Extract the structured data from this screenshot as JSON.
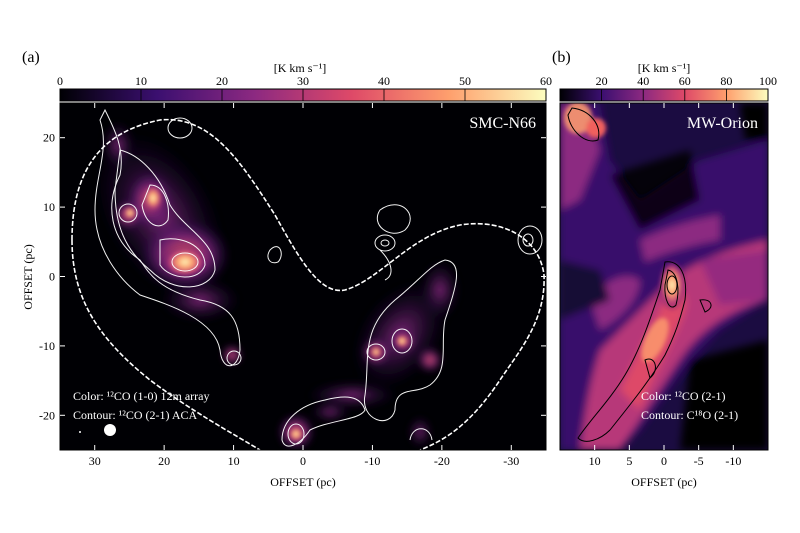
{
  "panel_a": {
    "label": "(a)",
    "title": "SMC-N66",
    "colorbar": {
      "unit": "[K km s⁻¹]",
      "ticks": [
        0,
        10,
        20,
        30,
        40,
        50,
        60
      ],
      "range": [
        0,
        60
      ]
    },
    "xlabel": "OFFSET (pc)",
    "ylabel": "OFFSET (pc)",
    "xticks": [
      30,
      20,
      10,
      0,
      -10,
      -20,
      -30
    ],
    "yticks": [
      20,
      10,
      0,
      -10,
      -20
    ],
    "xlim": [
      35,
      -35
    ],
    "ylim": [
      -25,
      25
    ],
    "legend_color": "Color: ¹²CO (1-0) 12m array",
    "legend_contour": "Contour: ¹²CO (2-1)  ACA"
  },
  "panel_b": {
    "label": "(b)",
    "title": "MW-Orion",
    "colorbar": {
      "unit": "[K km s⁻¹]",
      "ticks": [
        20,
        40,
        60,
        80,
        100
      ],
      "range": [
        0,
        100
      ]
    },
    "xlabel": "OFFSET (pc)",
    "xticks": [
      10,
      5,
      0,
      -5,
      -10
    ],
    "xlim": [
      15,
      -15
    ],
    "legend_color": "Color: ¹²CO (2-1)",
    "legend_contour": "Contour: C¹⁸O (2-1)"
  },
  "colormap": [
    "#000004",
    "#3b0f70",
    "#8c2981",
    "#de4968",
    "#fe9f6d",
    "#fcfdbf"
  ]
}
